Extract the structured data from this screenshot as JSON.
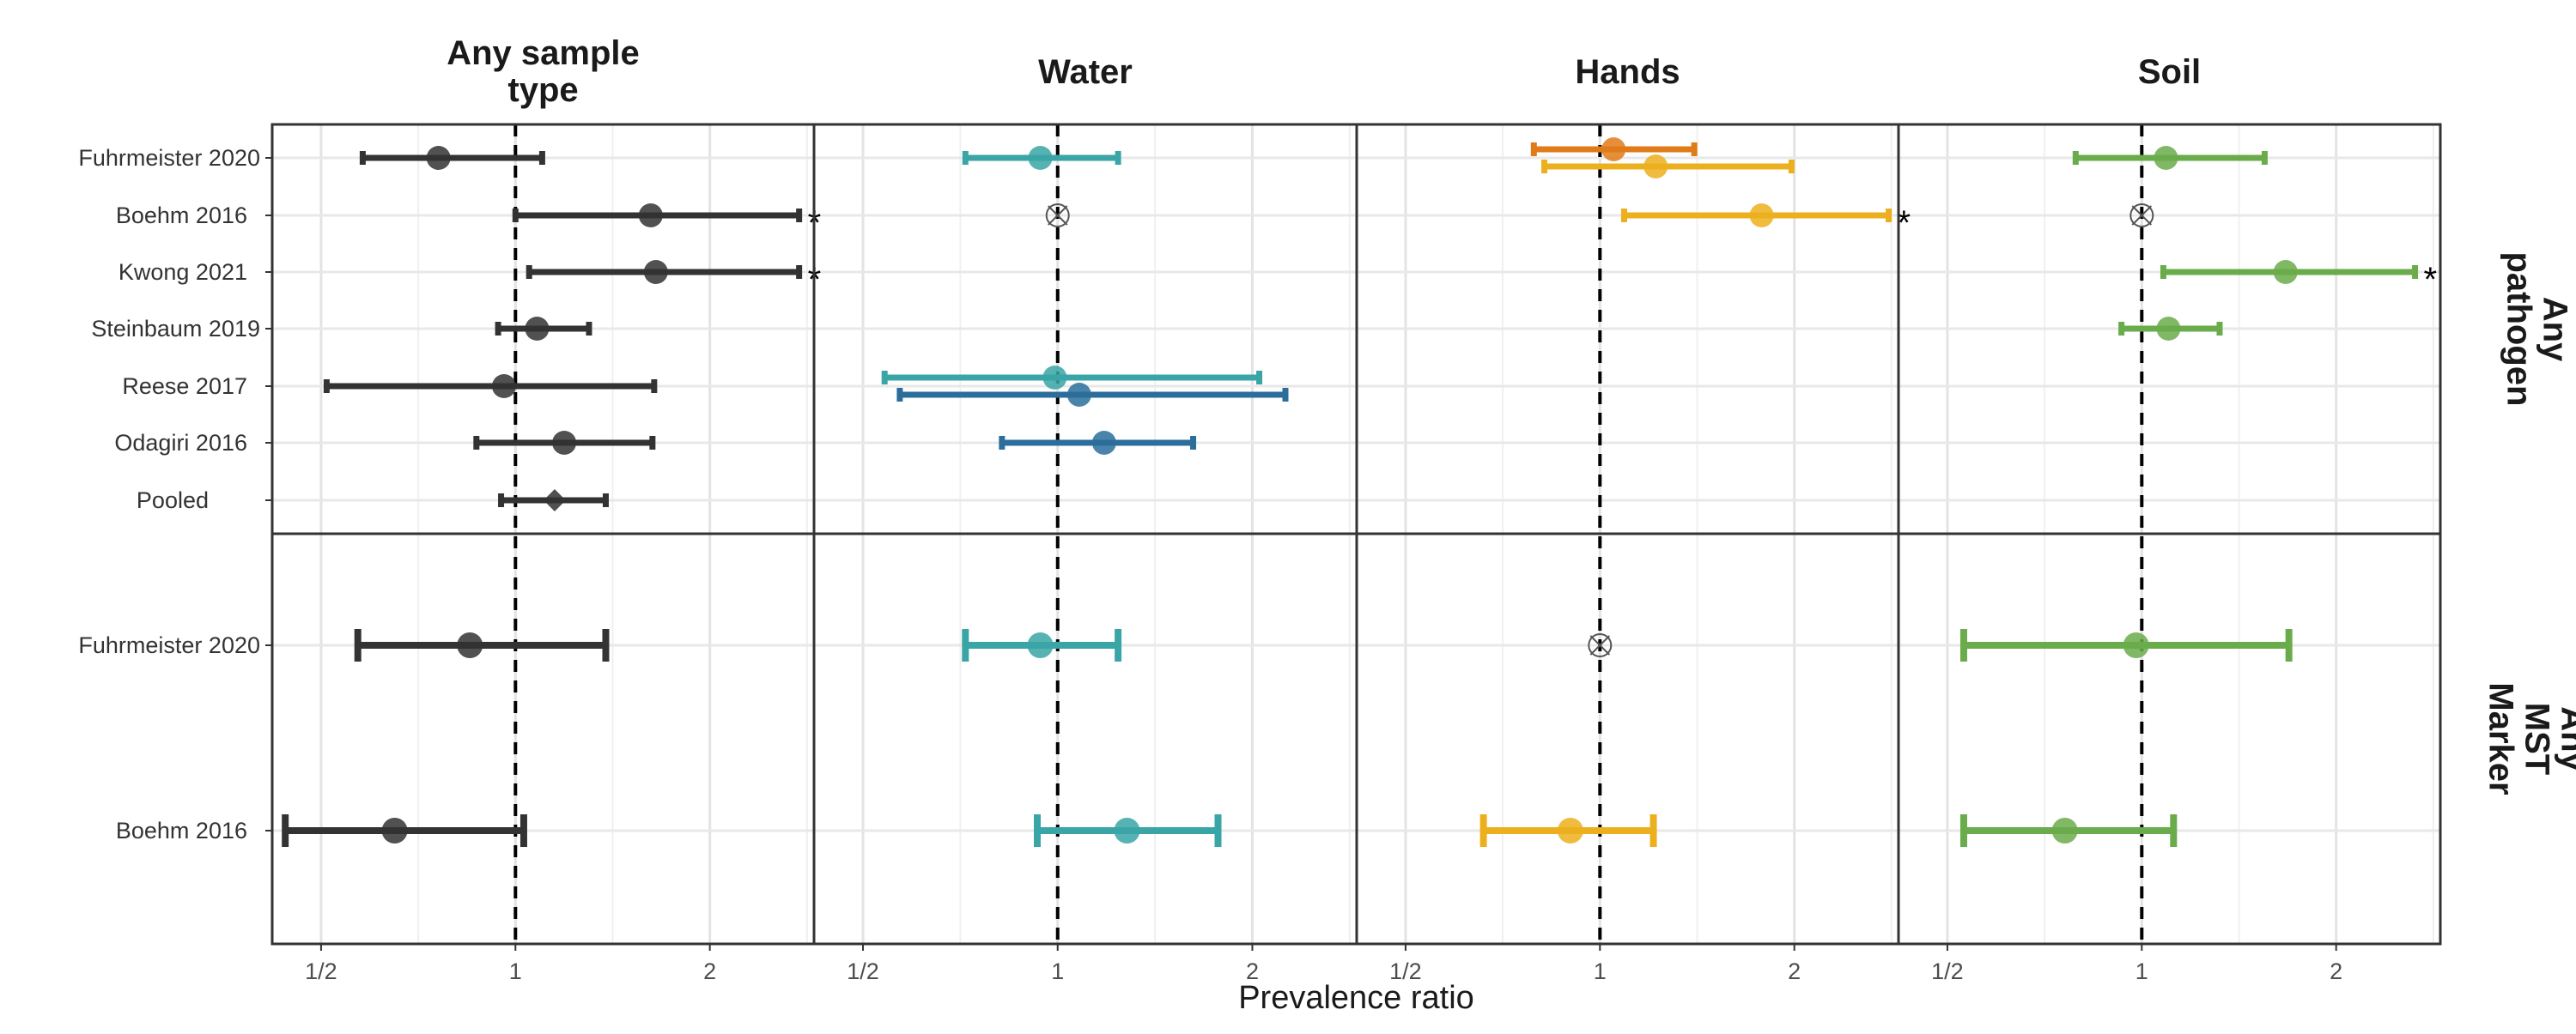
{
  "chart_data": {
    "type": "forest",
    "x_scale": "log2",
    "xlim": [
      0.42,
      2.9
    ],
    "x_ticks": [
      0.5,
      1,
      2
    ],
    "x_tick_labels": [
      "1/2",
      "1",
      "2"
    ],
    "xlabel": "Prevalence ratio",
    "reference_line": 1,
    "grid": true,
    "columns": [
      "Any sample\ntype",
      "Water",
      "Hands",
      "Soil"
    ],
    "rows": [
      "Any\npathogen",
      "Any\nMST\nMarker"
    ],
    "row_labels": [
      [
        "Fuhrmeister 2020",
        "Boehm 2016",
        "Kwong 2021",
        "Steinbaum 2019",
        "Reese 2017",
        "Odagiri 2016",
        "Pooled"
      ],
      [
        "Fuhrmeister 2020",
        "Boehm 2016"
      ]
    ],
    "colors": {
      "any": "#333333",
      "water_teal": "#3aa5a6",
      "water_blue": "#2c6e9b",
      "hands_orange": "#e07b1a",
      "hands_yellow": "#ecb01e",
      "soil": "#6aac4b",
      "null_marker": "#555555",
      "refline": "#000000"
    },
    "estimates": [
      {
        "col": 0,
        "row": 0,
        "study": 0,
        "est": 0.76,
        "lo": 0.58,
        "hi": 1.1,
        "color": "any",
        "marker": "circle"
      },
      {
        "col": 0,
        "row": 0,
        "study": 1,
        "est": 1.62,
        "lo": 1.0,
        "hi": 2.75,
        "color": "any",
        "marker": "circle",
        "sig": true
      },
      {
        "col": 0,
        "row": 0,
        "study": 2,
        "est": 1.65,
        "lo": 1.05,
        "hi": 2.75,
        "color": "any",
        "marker": "circle",
        "sig": true
      },
      {
        "col": 0,
        "row": 0,
        "study": 3,
        "est": 1.08,
        "lo": 0.94,
        "hi": 1.3,
        "color": "any",
        "marker": "circle"
      },
      {
        "col": 0,
        "row": 0,
        "study": 4,
        "est": 0.96,
        "lo": 0.51,
        "hi": 1.64,
        "color": "any",
        "marker": "circle"
      },
      {
        "col": 0,
        "row": 0,
        "study": 5,
        "est": 1.19,
        "lo": 0.87,
        "hi": 1.63,
        "color": "any",
        "marker": "circle"
      },
      {
        "col": 0,
        "row": 0,
        "study": 6,
        "est": 1.15,
        "lo": 0.95,
        "hi": 1.38,
        "color": "any",
        "marker": "diamond"
      },
      {
        "col": 1,
        "row": 0,
        "study": 0,
        "est": 0.94,
        "lo": 0.72,
        "hi": 1.24,
        "color": "water_teal",
        "marker": "circle"
      },
      {
        "col": 1,
        "row": 0,
        "study": 1,
        "est": null,
        "color": "null_marker",
        "marker": "null"
      },
      {
        "col": 1,
        "row": 0,
        "study": 4,
        "est": 0.99,
        "lo": 0.54,
        "hi": 2.05,
        "color": "water_teal",
        "marker": "circle",
        "offset": -1
      },
      {
        "col": 1,
        "row": 0,
        "study": 4,
        "est": 1.08,
        "lo": 0.57,
        "hi": 2.25,
        "color": "water_blue",
        "marker": "circle",
        "offset": 1
      },
      {
        "col": 1,
        "row": 0,
        "study": 5,
        "est": 1.18,
        "lo": 0.82,
        "hi": 1.62,
        "color": "water_blue",
        "marker": "circle"
      },
      {
        "col": 2,
        "row": 0,
        "study": 0,
        "est": 1.05,
        "lo": 0.79,
        "hi": 1.4,
        "color": "hands_orange",
        "marker": "circle",
        "offset": -1
      },
      {
        "col": 2,
        "row": 0,
        "study": 0,
        "est": 1.22,
        "lo": 0.82,
        "hi": 1.98,
        "color": "hands_yellow",
        "marker": "circle",
        "offset": 1
      },
      {
        "col": 2,
        "row": 0,
        "study": 1,
        "est": 1.78,
        "lo": 1.09,
        "hi": 2.8,
        "color": "hands_yellow",
        "marker": "circle",
        "sig": true
      },
      {
        "col": 3,
        "row": 0,
        "study": 0,
        "est": 1.09,
        "lo": 0.79,
        "hi": 1.55,
        "color": "soil",
        "marker": "circle"
      },
      {
        "col": 3,
        "row": 0,
        "study": 1,
        "est": null,
        "color": "null_marker",
        "marker": "null"
      },
      {
        "col": 3,
        "row": 0,
        "study": 2,
        "est": 1.67,
        "lo": 1.08,
        "hi": 2.65,
        "color": "soil",
        "marker": "circle",
        "sig": true
      },
      {
        "col": 3,
        "row": 0,
        "study": 3,
        "est": 1.1,
        "lo": 0.93,
        "hi": 1.32,
        "color": "soil",
        "marker": "circle"
      },
      {
        "col": 0,
        "row": 1,
        "study": 0,
        "est": 0.85,
        "lo": 0.57,
        "hi": 1.38,
        "color": "any",
        "marker": "circle"
      },
      {
        "col": 0,
        "row": 1,
        "study": 1,
        "est": 0.65,
        "lo": 0.44,
        "hi": 1.03,
        "color": "any",
        "marker": "circle"
      },
      {
        "col": 1,
        "row": 1,
        "study": 0,
        "est": 0.94,
        "lo": 0.72,
        "hi": 1.24,
        "color": "water_teal",
        "marker": "circle"
      },
      {
        "col": 1,
        "row": 1,
        "study": 1,
        "est": 1.28,
        "lo": 0.93,
        "hi": 1.77,
        "color": "water_teal",
        "marker": "circle"
      },
      {
        "col": 2,
        "row": 1,
        "study": 0,
        "est": null,
        "color": "null_marker",
        "marker": "null"
      },
      {
        "col": 2,
        "row": 1,
        "study": 1,
        "est": 0.9,
        "lo": 0.66,
        "hi": 1.21,
        "color": "hands_yellow",
        "marker": "circle"
      },
      {
        "col": 3,
        "row": 1,
        "study": 0,
        "est": 0.98,
        "lo": 0.53,
        "hi": 1.69,
        "color": "soil",
        "marker": "circle"
      },
      {
        "col": 3,
        "row": 1,
        "study": 1,
        "est": 0.76,
        "lo": 0.53,
        "hi": 1.12,
        "color": "soil",
        "marker": "circle"
      }
    ]
  }
}
